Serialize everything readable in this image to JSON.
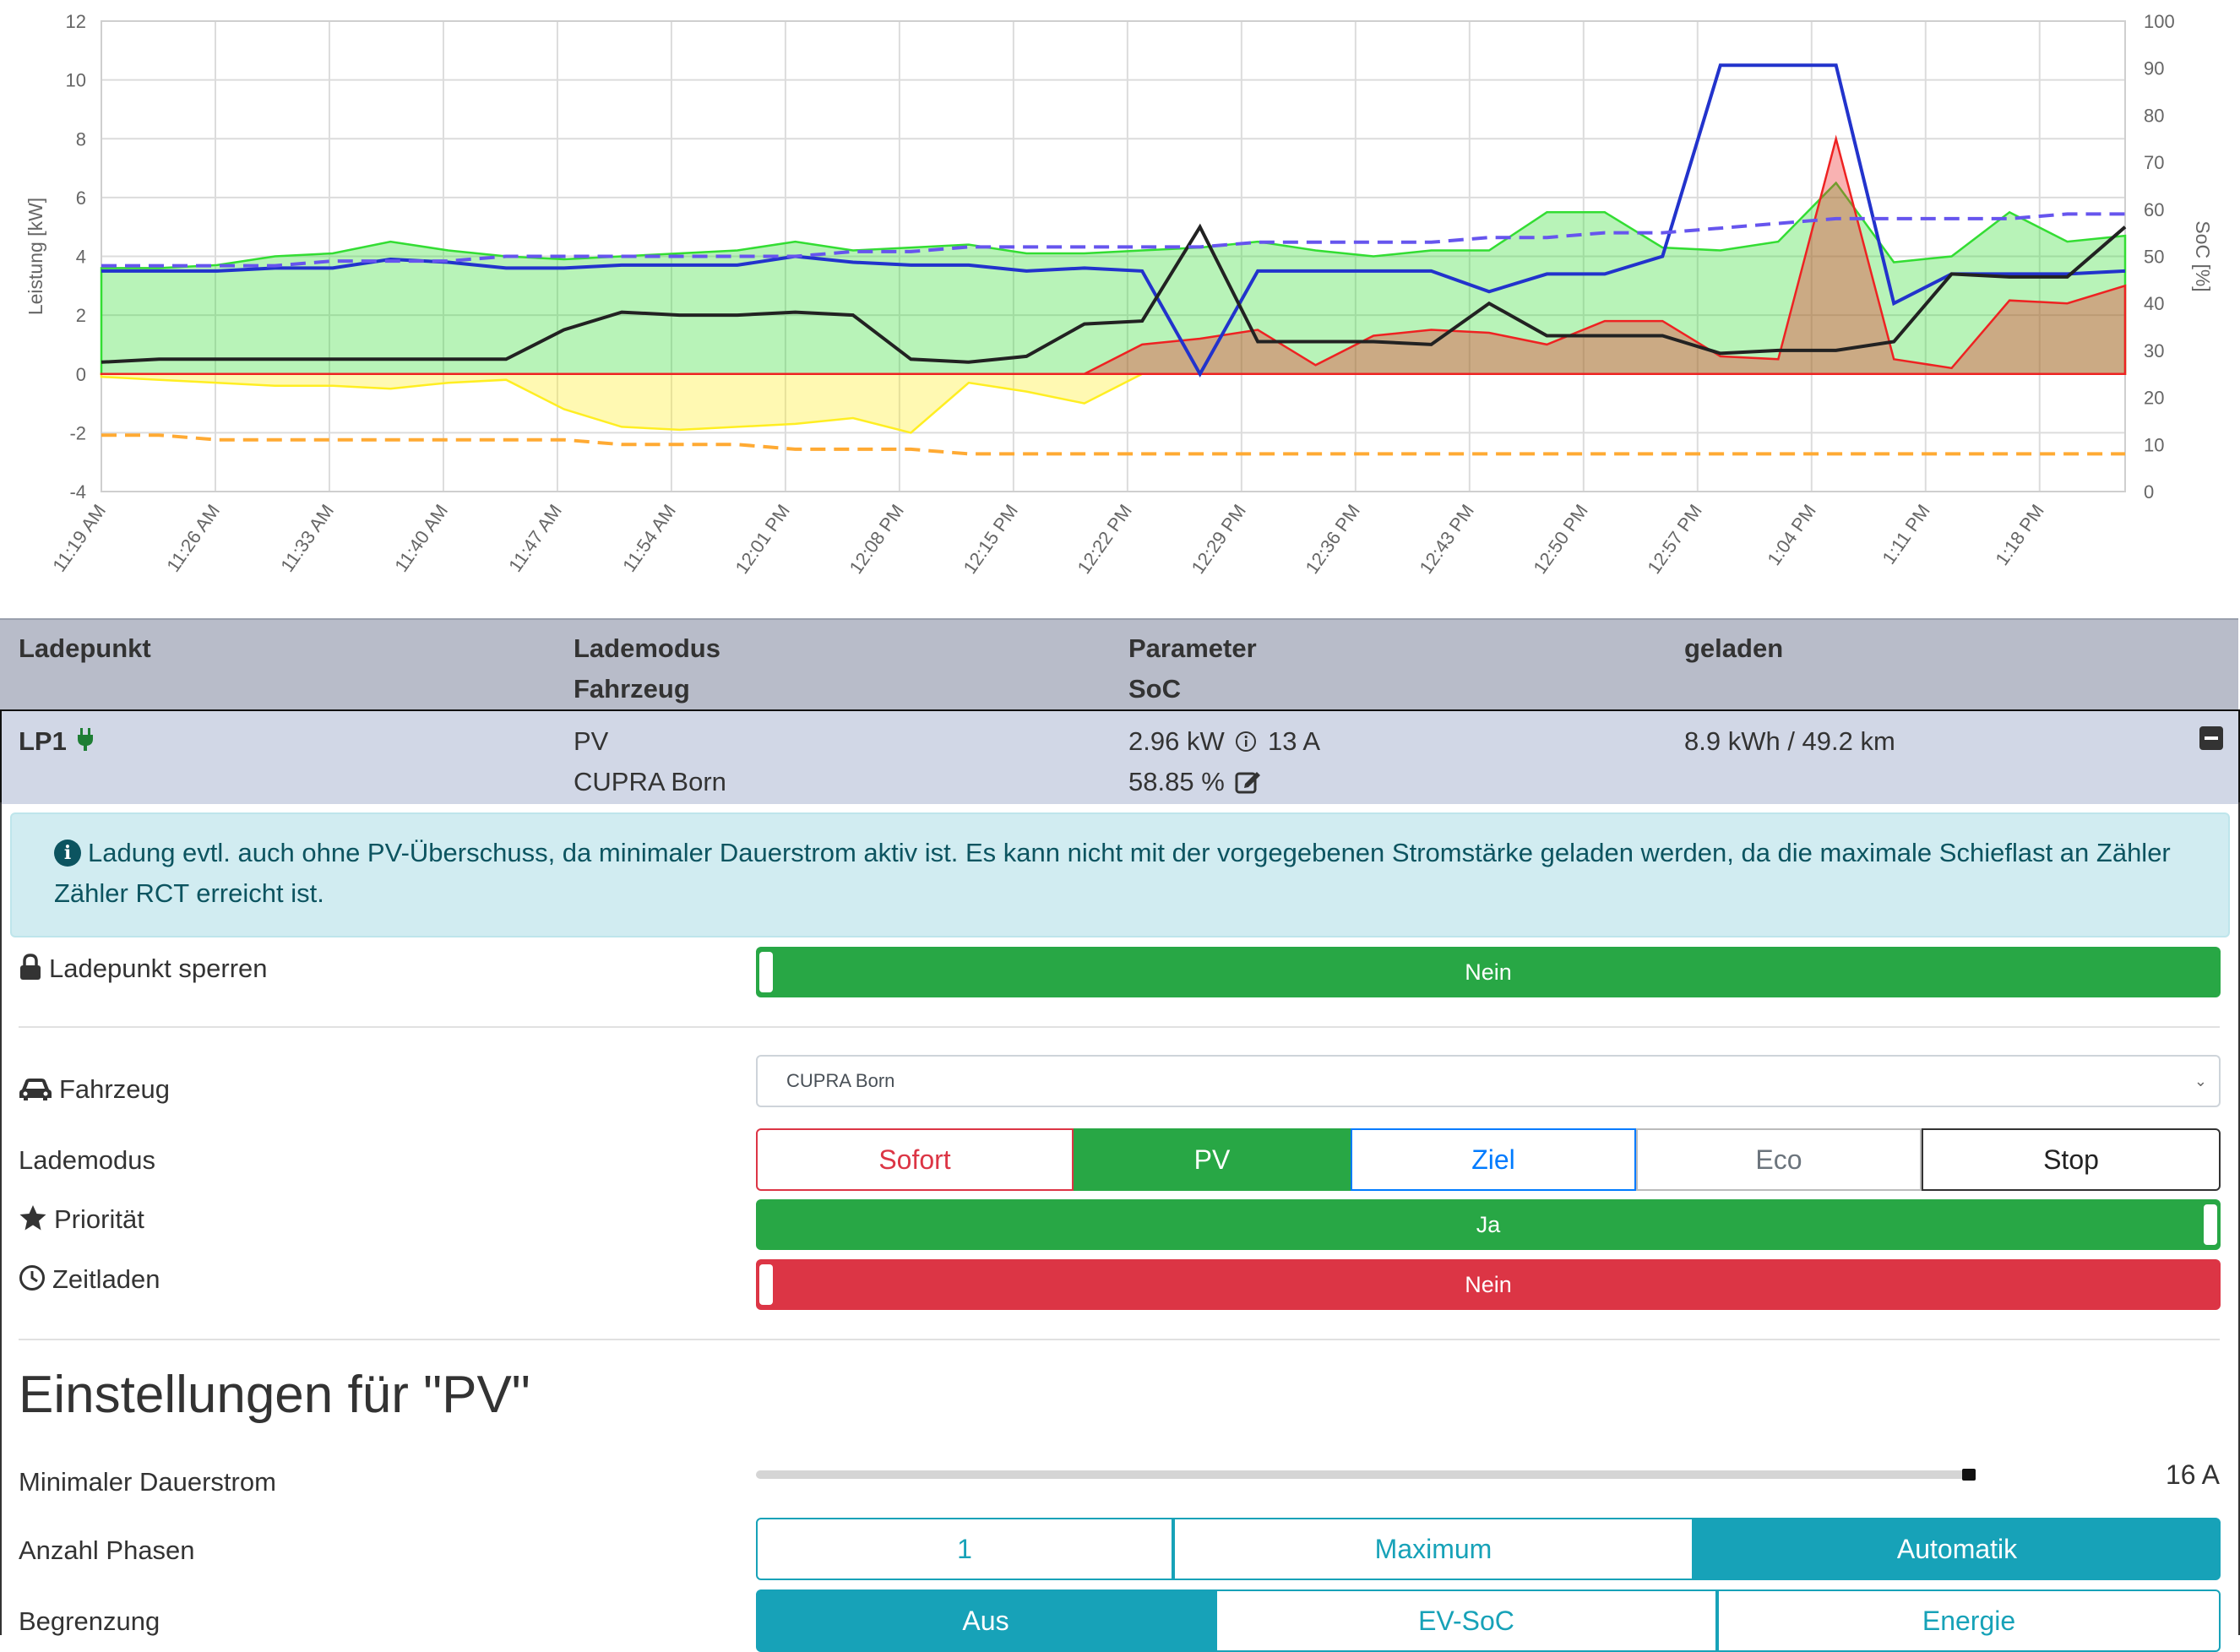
{
  "chart_data": {
    "type": "area",
    "x_ticks": [
      "11:19 AM",
      "11:26 AM",
      "11:33 AM",
      "11:40 AM",
      "11:47 AM",
      "11:54 AM",
      "12:01 PM",
      "12:08 PM",
      "12:15 PM",
      "12:22 PM",
      "12:29 PM",
      "12:36 PM",
      "12:43 PM",
      "12:50 PM",
      "12:57 PM",
      "1:04 PM",
      "1:11 PM",
      "1:18 PM"
    ],
    "ylabel": "Leistung [kW]",
    "ylabel_right": "SoC [%]",
    "ylim": [
      -4,
      12
    ],
    "y_ticks": [
      "-4",
      "-2",
      "0",
      "2",
      "4",
      "6",
      "8",
      "10",
      "12"
    ],
    "ylim_right": [
      0,
      100
    ],
    "y_ticks_right": [
      "0",
      "10",
      "20",
      "30",
      "40",
      "50",
      "60",
      "70",
      "80",
      "90",
      "100"
    ],
    "grid": true,
    "legend": "none",
    "series": [
      {
        "color": "#33dd33",
        "type": "area",
        "values": [
          3.6,
          3.6,
          3.7,
          4.0,
          4.1,
          4.5,
          4.2,
          4.0,
          3.9,
          4.0,
          4.1,
          4.2,
          4.5,
          4.2,
          4.3,
          4.4,
          4.1,
          4.1,
          4.2,
          4.3,
          4.5,
          4.2,
          4.0,
          4.2,
          4.2,
          5.5,
          5.5,
          4.3,
          4.2,
          4.5,
          6.5,
          3.8,
          4.0,
          5.5,
          4.5,
          4.7
        ]
      },
      {
        "color": "#ffee22",
        "type": "area",
        "values": [
          -0.1,
          -0.2,
          -0.3,
          -0.4,
          -0.4,
          -0.5,
          -0.3,
          -0.2,
          -1.2,
          -1.8,
          -1.9,
          -1.8,
          -1.7,
          -1.5,
          -2.0,
          -0.3,
          -0.6,
          -1.0,
          0,
          0,
          0,
          0,
          0,
          0,
          0,
          0,
          0,
          0,
          0,
          0,
          0,
          0,
          0,
          0,
          0,
          0
        ]
      },
      {
        "color": "#ee2222",
        "type": "area",
        "values": [
          0,
          0,
          0,
          0,
          0,
          0,
          0,
          0,
          0,
          0,
          0,
          0,
          0,
          0,
          0,
          0,
          0,
          0,
          1.0,
          1.2,
          1.5,
          0.3,
          1.3,
          1.5,
          1.4,
          1.0,
          1.8,
          1.8,
          0.6,
          0.5,
          8.0,
          0.5,
          0.2,
          2.5,
          2.4,
          3.0
        ]
      },
      {
        "color": "#2233cc",
        "type": "line",
        "values": [
          3.5,
          3.5,
          3.5,
          3.6,
          3.6,
          3.9,
          3.8,
          3.6,
          3.6,
          3.7,
          3.7,
          3.7,
          4.0,
          3.8,
          3.7,
          3.7,
          3.5,
          3.6,
          3.5,
          0,
          3.5,
          3.5,
          3.5,
          3.5,
          2.8,
          3.4,
          3.4,
          4.0,
          10.5,
          10.5,
          10.5,
          2.4,
          3.4,
          3.4,
          3.4,
          3.5
        ]
      },
      {
        "color": "#222222",
        "type": "line",
        "values": [
          0.4,
          0.5,
          0.5,
          0.5,
          0.5,
          0.5,
          0.5,
          0.5,
          1.5,
          2.1,
          2.0,
          2.0,
          2.1,
          2.0,
          0.5,
          0.4,
          0.6,
          1.7,
          1.8,
          5.0,
          1.1,
          1.1,
          1.1,
          1.0,
          2.4,
          1.3,
          1.3,
          1.3,
          0.7,
          0.8,
          0.8,
          1.1,
          3.4,
          3.3,
          3.3,
          5.0
        ]
      },
      {
        "color": "#6655ee",
        "type": "dashed",
        "axis": "right",
        "values": [
          48,
          48,
          48,
          48,
          49,
          49,
          49,
          50,
          50,
          50,
          50,
          50,
          50,
          51,
          51,
          52,
          52,
          52,
          52,
          52,
          53,
          53,
          53,
          53,
          54,
          54,
          55,
          55,
          56,
          57,
          58,
          58,
          58,
          58,
          59,
          59
        ]
      },
      {
        "color": "#ffaa33",
        "type": "dashed",
        "axis": "right",
        "values": [
          12,
          12,
          11,
          11,
          11,
          11,
          11,
          11,
          11,
          10,
          10,
          10,
          9,
          9,
          9,
          8,
          8,
          8,
          8,
          8,
          8,
          8,
          8,
          8,
          8,
          8,
          8,
          8,
          8,
          8,
          8,
          8,
          8,
          8,
          8,
          8
        ]
      }
    ]
  },
  "table": {
    "headers": {
      "ladepunkt": "Ladepunkt",
      "lademodus": "Lademodus",
      "fahrzeug": "Fahrzeug",
      "parameter": "Parameter",
      "soc": "SoC",
      "geladen": "geladen"
    },
    "row": {
      "name": "LP1",
      "mode": "PV",
      "vehicle": "CUPRA Born",
      "power": "2.96 kW",
      "current": "13 A",
      "soc": "58.85 %",
      "charged": "8.9 kWh / 49.2 km",
      "collapse": "−"
    }
  },
  "alert": {
    "text": "Ladung evtl. auch ohne PV-Überschuss, da minimaler Dauerstrom aktiv ist. Es kann nicht mit der vorgegebenen Stromstärke geladen werden, da die maximale Schieflast an Zähler Zähler RCT erreicht ist."
  },
  "settings": {
    "lock": {
      "label": "Ladepunkt sperren",
      "value": "Nein"
    },
    "vehicle": {
      "label": "Fahrzeug",
      "value": "CUPRA Born"
    },
    "mode": {
      "label": "Lademodus",
      "options": [
        "Sofort",
        "PV",
        "Ziel",
        "Eco",
        "Stop"
      ],
      "active": "PV"
    },
    "priority": {
      "label": "Priorität",
      "value": "Ja"
    },
    "timed": {
      "label": "Zeitladen",
      "value": "Nein"
    }
  },
  "pv": {
    "heading": "Einstellungen für \"PV\"",
    "min_current": {
      "label": "Minimaler Dauerstrom",
      "value": "16 A",
      "fraction": 1.0
    },
    "phases": {
      "label": "Anzahl Phasen",
      "options": [
        "1",
        "Maximum",
        "Automatik"
      ],
      "active": "Automatik"
    },
    "limit": {
      "label": "Begrenzung",
      "options": [
        "Aus",
        "EV-SoC",
        "Energie"
      ],
      "active": "Aus"
    }
  },
  "colors": {
    "green": "#28a745",
    "red": "#dc3545",
    "teal": "#17a2b8",
    "blue": "#007bff",
    "gray": "#6c757d"
  }
}
